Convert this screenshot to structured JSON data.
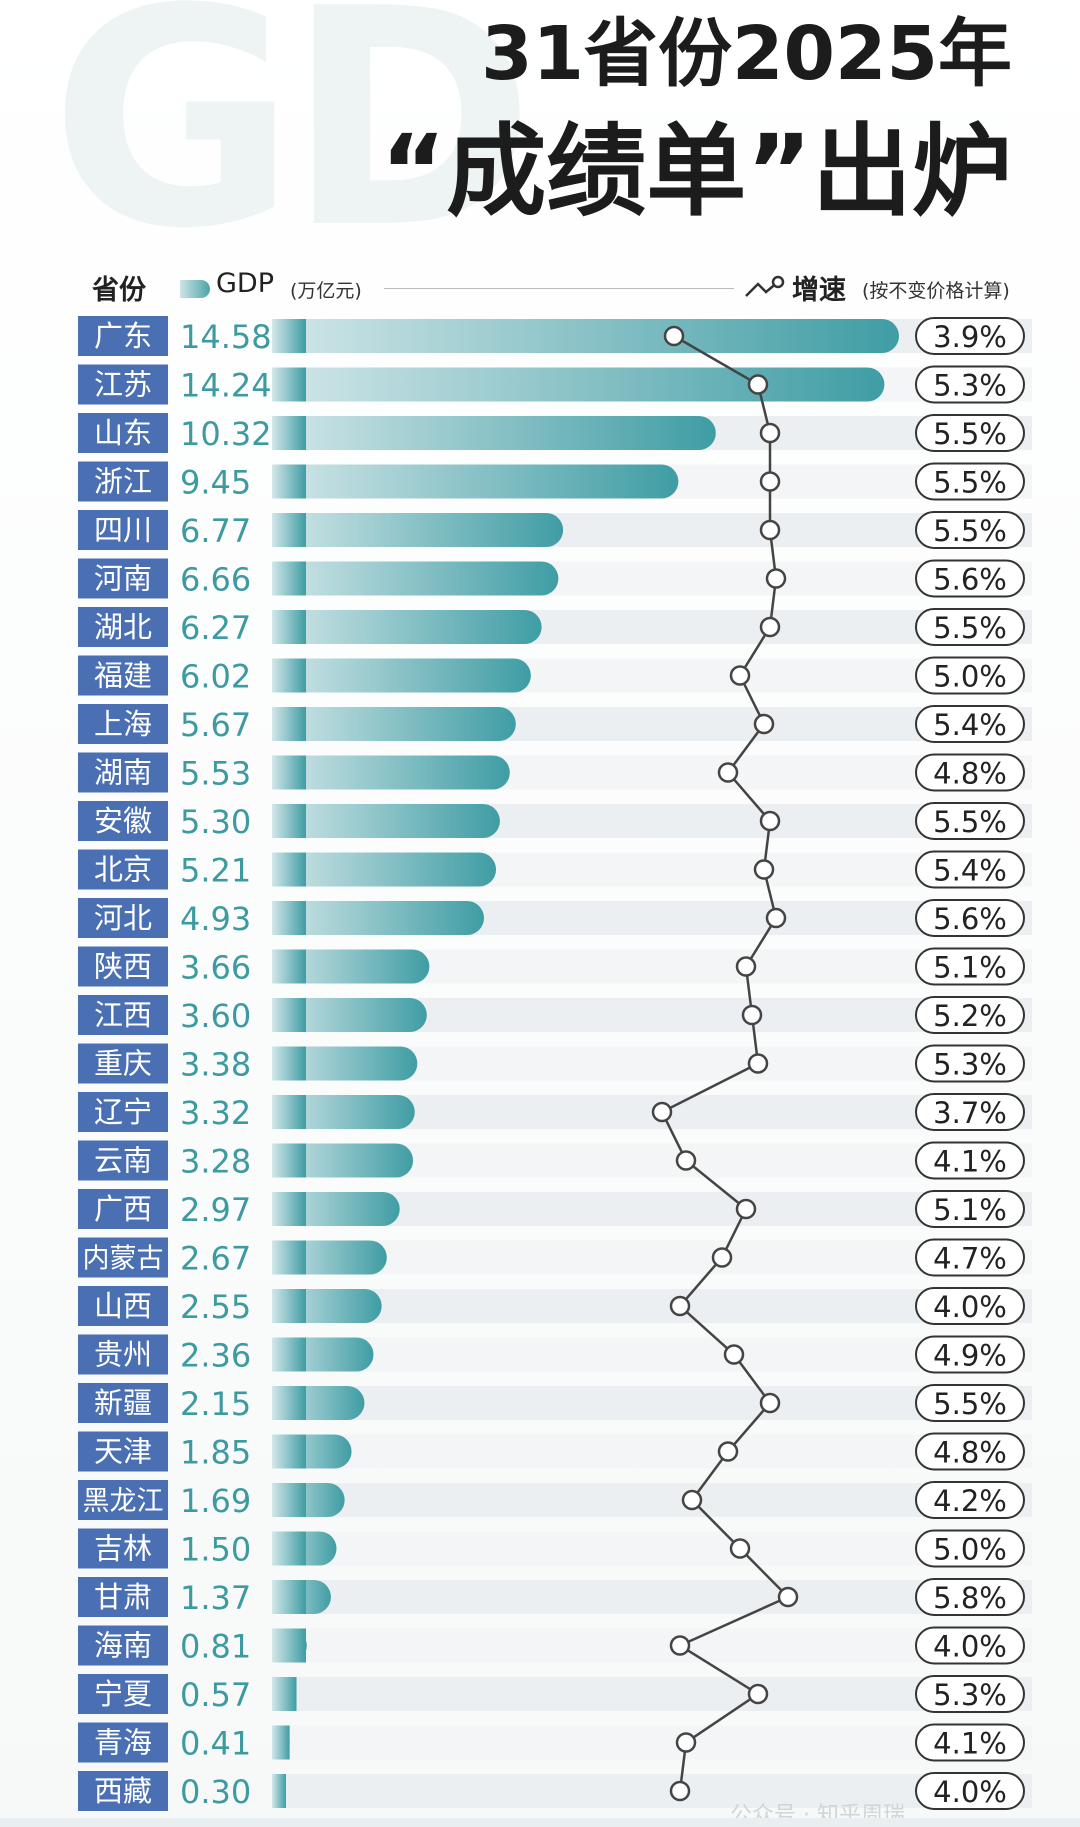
{
  "background_mark": "GD",
  "title": {
    "line1": "31省份2025年",
    "line2": "“成绩单”出炉"
  },
  "legend": {
    "province_label": "省份",
    "gdp_label": "GDP",
    "gdp_unit": "(万亿元)",
    "growth_label": "增速",
    "growth_unit": "(按不变价格计算)"
  },
  "watermark": "公众号 · 知乎周瑞",
  "colors": {
    "bar_start": "#d3e7e9",
    "bar_end": "#3f9da4",
    "label_bg": "#4a70b3",
    "value_text": "#3d9aa1",
    "stripe": "#eceff1"
  },
  "chart_data": {
    "type": "bar",
    "title": "31省份2025年“成绩单”出炉",
    "categories": [
      "广东",
      "江苏",
      "山东",
      "浙江",
      "四川",
      "河南",
      "湖北",
      "福建",
      "上海",
      "湖南",
      "安徽",
      "北京",
      "河北",
      "陕西",
      "江西",
      "重庆",
      "辽宁",
      "云南",
      "广西",
      "内蒙古",
      "山西",
      "贵州",
      "新疆",
      "天津",
      "黑龙江",
      "吉林",
      "甘肃",
      "海南",
      "宁夏",
      "青海",
      "西藏"
    ],
    "series": [
      {
        "name": "GDP",
        "unit": "万亿元",
        "values": [
          14.58,
          14.24,
          10.32,
          9.45,
          6.77,
          6.66,
          6.27,
          6.02,
          5.67,
          5.53,
          5.3,
          5.21,
          4.93,
          3.66,
          3.6,
          3.38,
          3.32,
          3.28,
          2.97,
          2.67,
          2.55,
          2.36,
          2.15,
          1.85,
          1.69,
          1.5,
          1.37,
          0.81,
          0.57,
          0.41,
          0.3
        ]
      },
      {
        "name": "增速",
        "unit": "%",
        "values": [
          3.9,
          5.3,
          5.5,
          5.5,
          5.5,
          5.6,
          5.5,
          5.0,
          5.4,
          4.8,
          5.5,
          5.4,
          5.6,
          5.1,
          5.2,
          5.3,
          3.7,
          4.1,
          5.1,
          4.7,
          4.0,
          4.9,
          5.5,
          4.8,
          4.2,
          5.0,
          5.8,
          4.0,
          5.3,
          4.1,
          4.0
        ]
      }
    ],
    "gdp_labels": [
      "14.58",
      "14.24",
      "10.32",
      "9.45",
      "6.77",
      "6.66",
      "6.27",
      "6.02",
      "5.67",
      "5.53",
      "5.30",
      "5.21",
      "4.93",
      "3.66",
      "3.60",
      "3.38",
      "3.32",
      "3.28",
      "2.97",
      "2.67",
      "2.55",
      "2.36",
      "2.15",
      "1.85",
      "1.69",
      "1.50",
      "1.37",
      "0.81",
      "0.57",
      "0.41",
      "0.30"
    ],
    "growth_labels": [
      "3.9%",
      "5.3%",
      "5.5%",
      "5.5%",
      "5.5%",
      "5.6%",
      "5.5%",
      "5.0%",
      "5.4%",
      "4.8%",
      "5.5%",
      "5.4%",
      "5.6%",
      "5.1%",
      "5.2%",
      "5.3%",
      "3.7%",
      "4.1%",
      "5.1%",
      "4.7%",
      "4.0%",
      "4.9%",
      "5.5%",
      "4.8%",
      "4.2%",
      "5.0%",
      "5.8%",
      "4.0%",
      "5.3%",
      "4.1%",
      "4.0%"
    ],
    "xlim": [
      0,
      14.58
    ]
  }
}
